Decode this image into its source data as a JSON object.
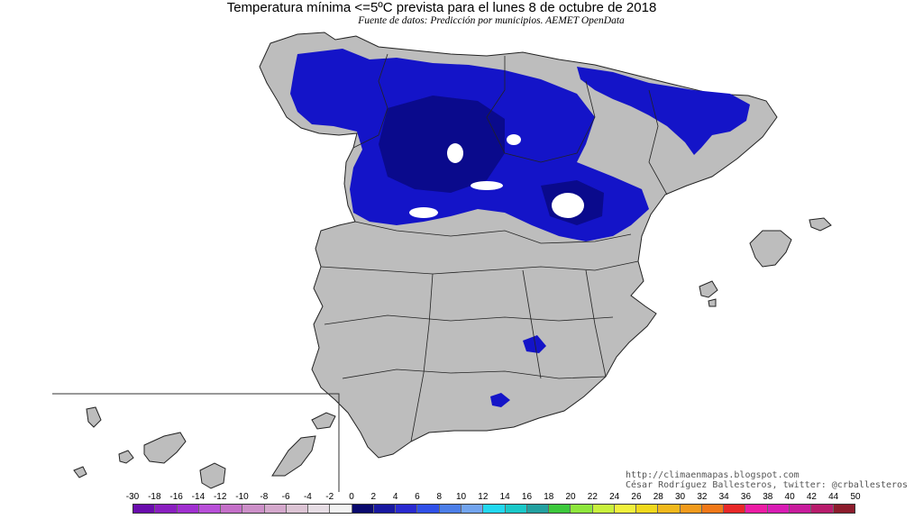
{
  "header": {
    "title": "Temperatura mínima <=5ºC prevista para el lunes 8 de octubre de 2018",
    "subtitle": "Fuente de datos: Predicción por municipios. AEMET OpenData"
  },
  "credits": {
    "blog": "http://climaenmapas.blogspot.com",
    "author": "César Rodríguez Ballesteros, twitter: @crballesteros"
  },
  "colors": {
    "land": "#bdbdbd",
    "sea": "#ffffff",
    "cold_blue": "#1212c8",
    "deep_blue": "#0a0a8c",
    "border": "#222222"
  },
  "legend": {
    "labels": [
      "-30",
      "-18",
      "-16",
      "-14",
      "-12",
      "-10",
      "-8",
      "-6",
      "-4",
      "-2",
      "0",
      "2",
      "4",
      "6",
      "8",
      "10",
      "12",
      "14",
      "16",
      "18",
      "20",
      "22",
      "24",
      "26",
      "28",
      "30",
      "32",
      "34",
      "36",
      "38",
      "40",
      "42",
      "44",
      "50"
    ],
    "colors": [
      "#6a0dad",
      "#8a1fc0",
      "#a02fd0",
      "#b84fd8",
      "#c46fc8",
      "#cc8fc8",
      "#d4a8cc",
      "#dcc4d4",
      "#e6dde4",
      "#f2f2f2",
      "#0a0a6e",
      "#1818a0",
      "#2a2ad0",
      "#3050e8",
      "#4c7ee8",
      "#72a4ee",
      "#22d8f0",
      "#1ac8c8",
      "#22a0a0",
      "#3cc83c",
      "#8ee63c",
      "#c8f03c",
      "#f0f03c",
      "#f0d81c",
      "#f0b81c",
      "#f09a1c",
      "#f07818",
      "#e82828",
      "#ec1ca4",
      "#d81cb4",
      "#c81c9c",
      "#b81c6c",
      "#8c1c2c"
    ]
  }
}
